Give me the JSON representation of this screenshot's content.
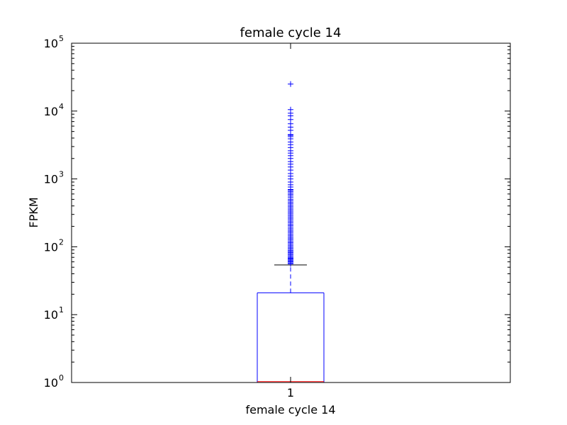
{
  "chart_data": {
    "type": "box",
    "title": "female cycle 14",
    "xlabel": "female cycle 14",
    "ylabel": "FPKM",
    "y_scale": "log",
    "ylim": [
      1,
      100000
    ],
    "grid": false,
    "y_ticks": [
      {
        "base": "10",
        "exp": "0",
        "value": 1
      },
      {
        "base": "10",
        "exp": "1",
        "value": 10
      },
      {
        "base": "10",
        "exp": "2",
        "value": 100
      },
      {
        "base": "10",
        "exp": "3",
        "value": 1000
      },
      {
        "base": "10",
        "exp": "4",
        "value": 10000
      },
      {
        "base": "10",
        "exp": "5",
        "value": 100000
      }
    ],
    "categories": [
      "1"
    ],
    "box": {
      "median": 1.03,
      "q1": 1.0,
      "q3": 21,
      "whisker_low": 1.0,
      "whisker_high": 54
    },
    "outliers": [
      56,
      58,
      60,
      62,
      64,
      66,
      68,
      70,
      73,
      76,
      79,
      82,
      85,
      88,
      92,
      96,
      100,
      105,
      110,
      115,
      120,
      126,
      132,
      138,
      145,
      152,
      160,
      168,
      176,
      185,
      195,
      205,
      215,
      226,
      238,
      250,
      263,
      276,
      290,
      305,
      320,
      336,
      353,
      371,
      390,
      410,
      431,
      453,
      476,
      500,
      530,
      560,
      590,
      620,
      650,
      680,
      700,
      760,
      820,
      900,
      1000,
      1100,
      1200,
      1350,
      1500,
      1650,
      1800,
      2000,
      2200,
      2400,
      2600,
      2900,
      3200,
      3500,
      3900,
      4200,
      4400,
      4500,
      5200,
      5800,
      6500,
      7500,
      8500,
      9300,
      10500,
      25000
    ],
    "colors": {
      "box": "#0000ff",
      "median": "#ff0000",
      "cap": "#000000",
      "flier": "#0000ff"
    }
  }
}
